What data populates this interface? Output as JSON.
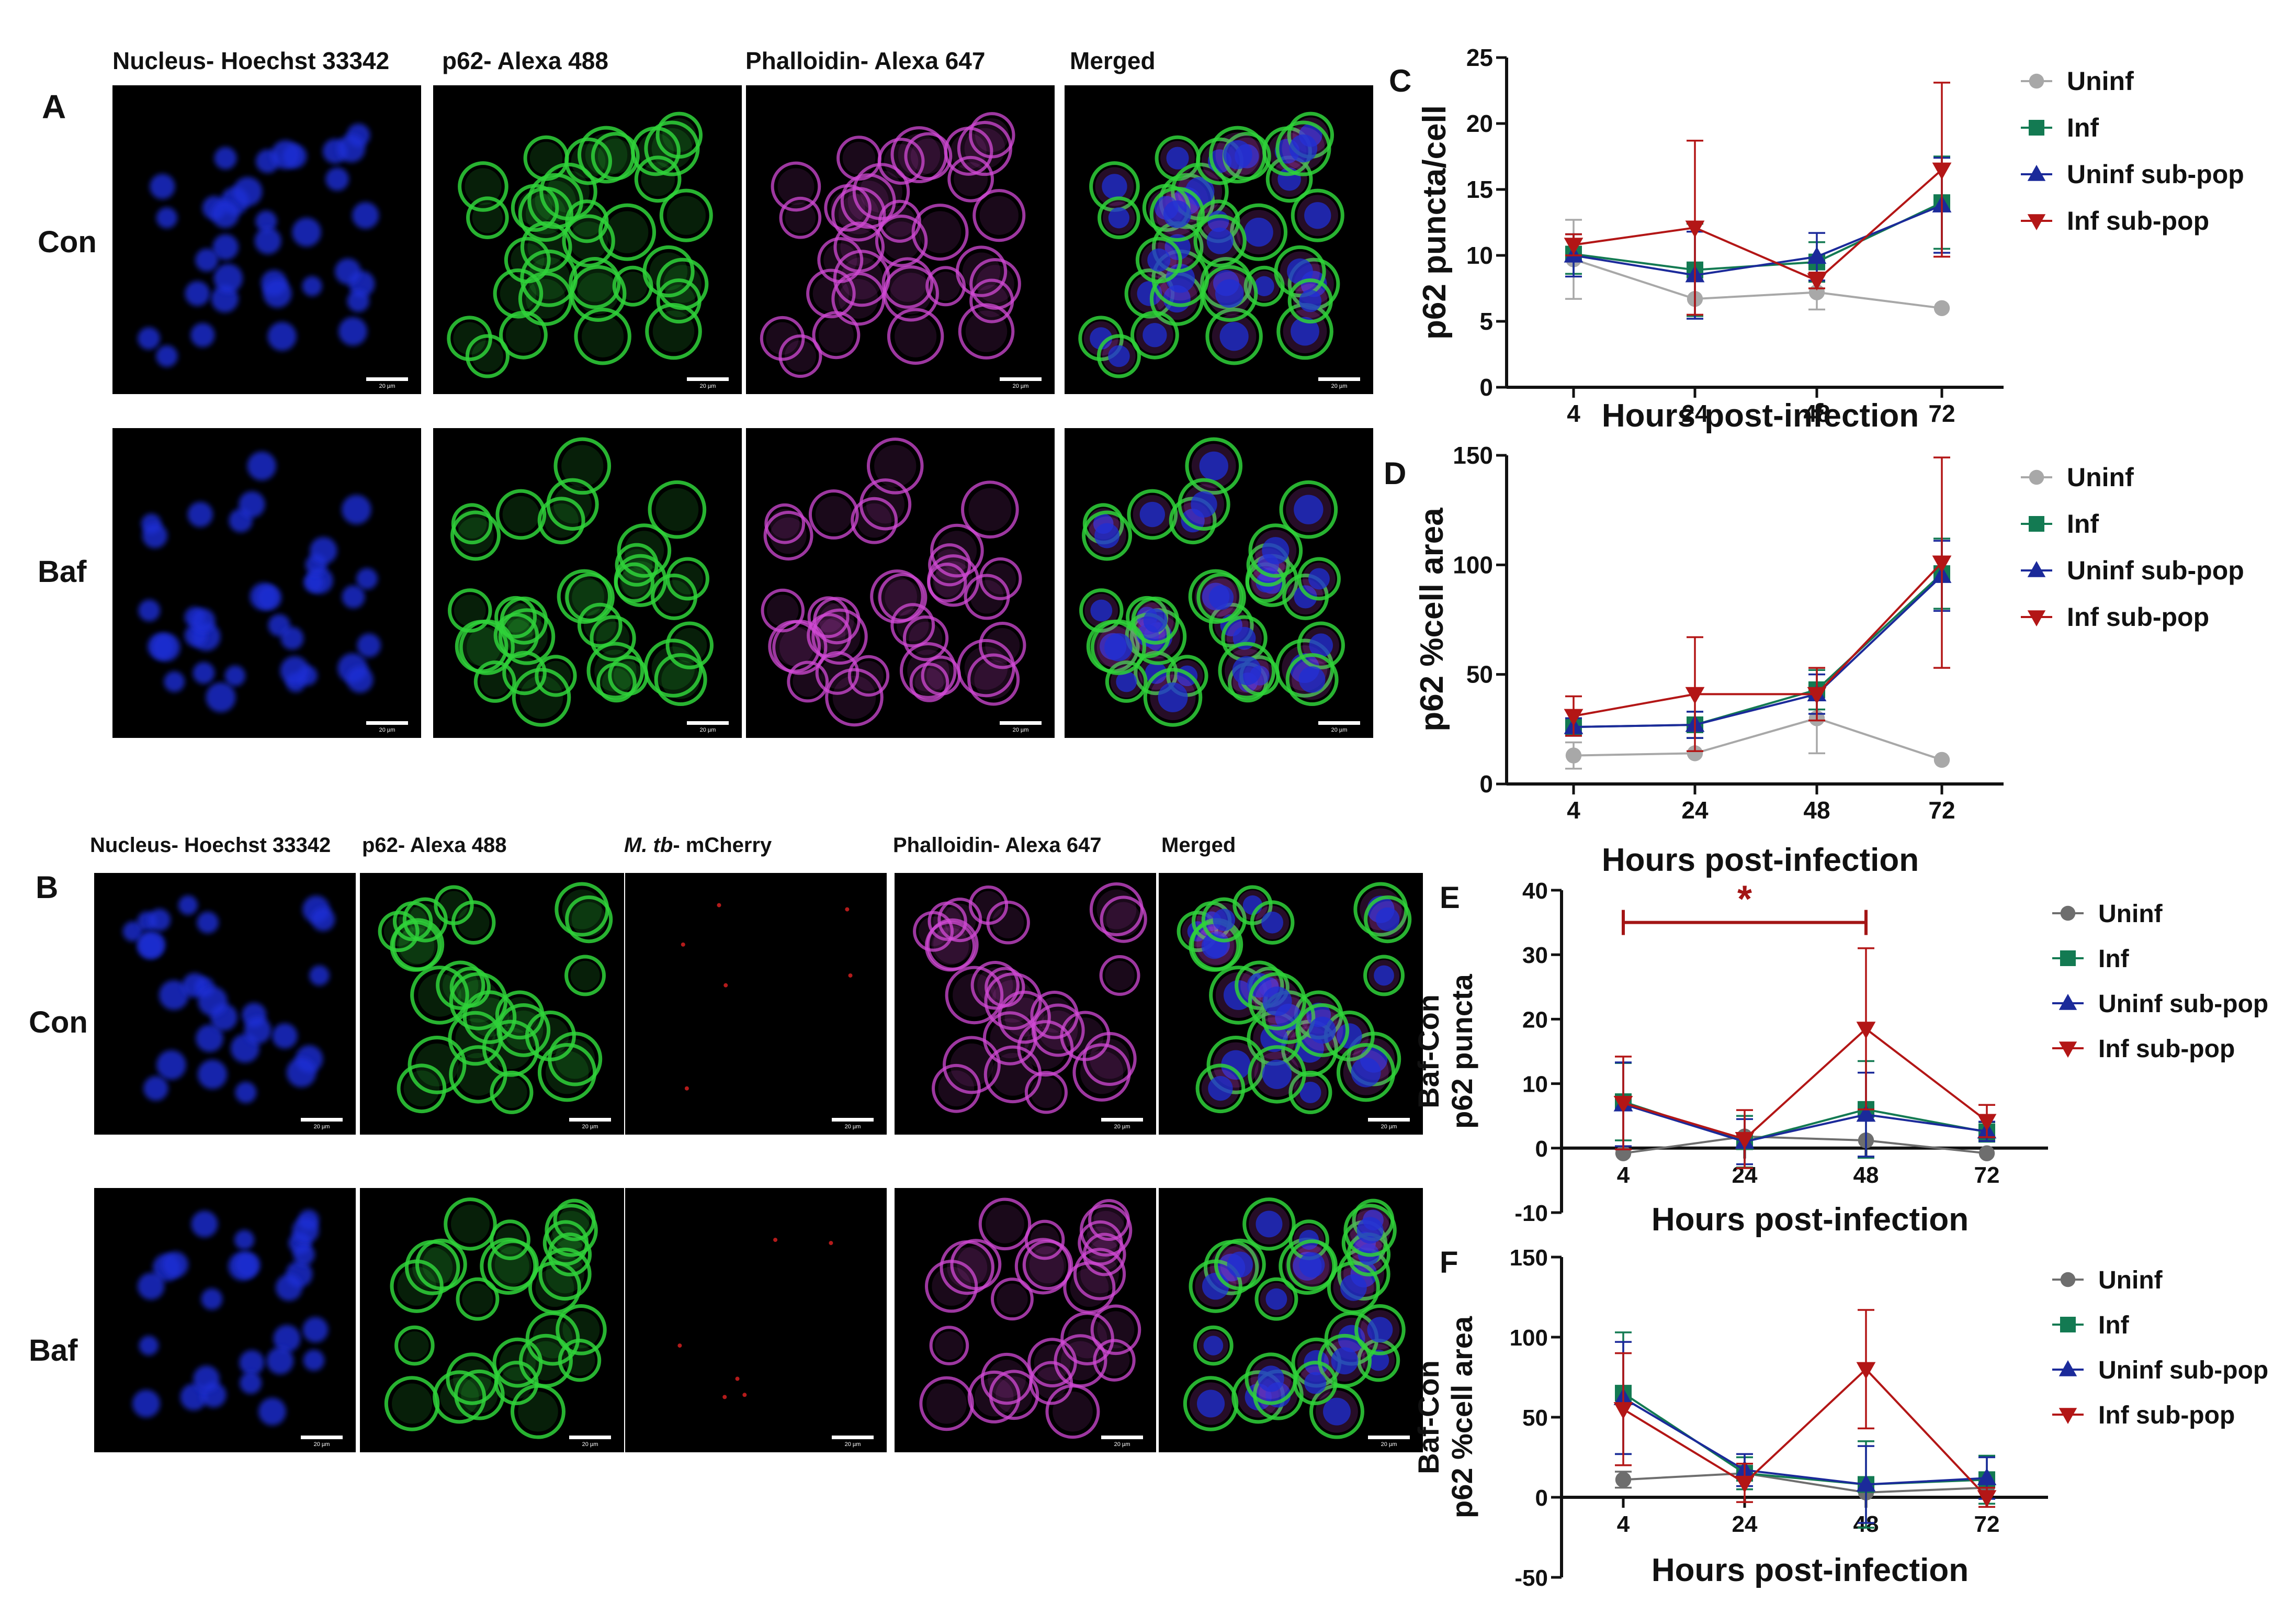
{
  "microscopy": {
    "A": {
      "letter": "A",
      "columns": [
        "Nucleus- Hoechst 33342",
        "p62- Alexa 488",
        "Phalloidin- Alexa 647",
        "Merged"
      ],
      "rows": [
        "Con",
        "Baf"
      ],
      "scalebar": "20 µm"
    },
    "B": {
      "letter": "B",
      "columns": [
        "Nucleus- Hoechst 33342",
        "p62- Alexa 488",
        "M. tb",
        "- mCherry",
        "Phalloidin- Alexa 647",
        "Merged"
      ],
      "rows": [
        "Con",
        "Baf"
      ],
      "scalebar": "20 µm"
    },
    "colors": {
      "blue": "#1e2fd6",
      "green": "#2fd23a",
      "red": "#c81e1e",
      "magenta": "#d24ad6",
      "background": "#000000"
    }
  },
  "chart_data": [
    {
      "panel": "C",
      "type": "line",
      "xlabel": "Hours post-infection",
      "ylabel": [
        "p62 puncta/cell"
      ],
      "x_ticks": [
        "4",
        "24",
        "48",
        "72"
      ],
      "ylim": [
        0,
        25
      ],
      "yticks": [
        0,
        5,
        10,
        15,
        20,
        25
      ],
      "legend": "right",
      "series": [
        {
          "name": "Uninf",
          "marker": "circle",
          "color": "#a8a8a8",
          "values": [
            9.7,
            6.7,
            7.2,
            6.0
          ],
          "err": [
            3.0,
            1.5,
            1.3,
            0
          ]
        },
        {
          "name": "Inf",
          "marker": "square",
          "color": "#137a52",
          "values": [
            10.1,
            8.9,
            9.5,
            14.0
          ],
          "err": [
            1.5,
            3.5,
            1.5,
            3.5
          ]
        },
        {
          "name": "Uninf sub-pop",
          "marker": "triangle-up",
          "color": "#1b2a9a",
          "values": [
            10.0,
            8.5,
            9.9,
            13.8
          ],
          "err": [
            1.6,
            3.3,
            1.8,
            3.6
          ]
        },
        {
          "name": "Inf sub-pop",
          "marker": "triangle-down",
          "color": "#b31616",
          "values": [
            10.8,
            12.1,
            8.1,
            16.5
          ],
          "err": [
            0.8,
            6.6,
            0.6,
            6.6
          ]
        }
      ]
    },
    {
      "panel": "D",
      "type": "line",
      "xlabel": "Hours post-infection",
      "ylabel": [
        "p62 %cell area"
      ],
      "x_ticks": [
        "4",
        "24",
        "48",
        "72"
      ],
      "ylim": [
        0,
        150
      ],
      "yticks": [
        0,
        50,
        100,
        150
      ],
      "legend": "right",
      "series": [
        {
          "name": "Uninf",
          "marker": "circle",
          "color": "#a8a8a8",
          "values": [
            13,
            14,
            30,
            11
          ],
          "err": [
            6,
            0,
            16,
            0
          ]
        },
        {
          "name": "Inf",
          "marker": "square",
          "color": "#137a52",
          "values": [
            26,
            27,
            43,
            96
          ],
          "err": [
            4,
            6,
            9,
            16
          ]
        },
        {
          "name": "Uninf sub-pop",
          "marker": "triangle-up",
          "color": "#1b2a9a",
          "values": [
            26,
            27,
            41,
            95
          ],
          "err": [
            4,
            6,
            9,
            16
          ]
        },
        {
          "name": "Inf sub-pop",
          "marker": "triangle-down",
          "color": "#b31616",
          "values": [
            31,
            41,
            41,
            101
          ],
          "err": [
            9,
            26,
            12,
            48
          ]
        }
      ]
    },
    {
      "panel": "E",
      "type": "line",
      "xlabel": "Hours post-infection",
      "ylabel": [
        "Baf-Con",
        "p62 puncta"
      ],
      "x_ticks": [
        "4",
        "24",
        "48",
        "72"
      ],
      "ylim": [
        -10,
        40
      ],
      "yticks": [
        -10,
        0,
        10,
        20,
        30,
        40
      ],
      "legend": "right",
      "significance": {
        "from": "4",
        "to": "48",
        "label": "*",
        "y": 35
      },
      "series": [
        {
          "name": "Uninf",
          "marker": "circle",
          "color": "#6e6e6e",
          "values": [
            -0.8,
            1.8,
            1.2,
            -0.8
          ],
          "err": [
            0,
            0,
            0,
            0
          ]
        },
        {
          "name": "Inf",
          "marker": "square",
          "color": "#137a52",
          "values": [
            7.2,
            1.0,
            6.0,
            2.5
          ],
          "err": [
            6.0,
            4.0,
            7.5,
            1.5
          ]
        },
        {
          "name": "Uninf sub-pop",
          "marker": "triangle-up",
          "color": "#1b2a9a",
          "values": [
            6.8,
            1.0,
            5.2,
            2.6
          ],
          "err": [
            6.5,
            3.5,
            6.5,
            1.5
          ]
        },
        {
          "name": "Inf sub-pop",
          "marker": "triangle-down",
          "color": "#b31616",
          "values": [
            7.0,
            1.4,
            18.5,
            4.2
          ],
          "err": [
            7.2,
            4.5,
            12.5,
            2.5
          ]
        }
      ]
    },
    {
      "panel": "F",
      "type": "line",
      "xlabel": "Hours post-infection",
      "ylabel": [
        "Baf-Con",
        "p62 %cell area"
      ],
      "x_ticks": [
        "4",
        "24",
        "48",
        "72"
      ],
      "ylim": [
        -50,
        150
      ],
      "yticks": [
        -50,
        0,
        50,
        100,
        150
      ],
      "legend": "right",
      "series": [
        {
          "name": "Uninf",
          "marker": "circle",
          "color": "#6e6e6e",
          "values": [
            11,
            15,
            3,
            6
          ],
          "err": [
            5,
            0,
            0,
            0
          ]
        },
        {
          "name": "Inf",
          "marker": "square",
          "color": "#137a52",
          "values": [
            65,
            15,
            8,
            11
          ],
          "err": [
            38,
            10,
            27,
            15
          ]
        },
        {
          "name": "Uninf sub-pop",
          "marker": "triangle-up",
          "color": "#1b2a9a",
          "values": [
            62,
            17,
            8,
            12
          ],
          "err": [
            35,
            10,
            24,
            13
          ]
        },
        {
          "name": "Inf sub-pop",
          "marker": "triangle-down",
          "color": "#b31616",
          "values": [
            55,
            9,
            80,
            0
          ],
          "err": [
            35,
            12,
            37,
            6
          ]
        }
      ]
    }
  ]
}
